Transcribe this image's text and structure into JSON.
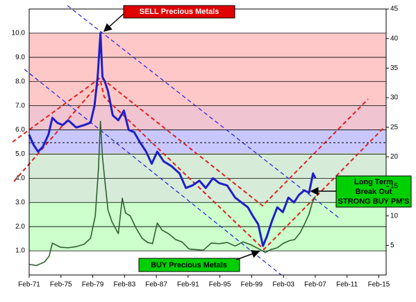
{
  "chart_data": {
    "type": "line",
    "annotations": [
      "SELL Precious Metals",
      "BUY Precious Metals",
      "Long Term",
      "Break Out",
      "STRONG BUY PM'S"
    ],
    "xlim": [
      1971.08,
      2016.0
    ],
    "xticks": [
      {
        "value": 1971.08,
        "label": "Feb-71"
      },
      {
        "value": 1975.08,
        "label": "Feb-75"
      },
      {
        "value": 1979.08,
        "label": "Feb-79"
      },
      {
        "value": 1983.08,
        "label": "Feb-83"
      },
      {
        "value": 1987.08,
        "label": "Feb-87"
      },
      {
        "value": 1991.08,
        "label": "Feb-91"
      },
      {
        "value": 1995.08,
        "label": "Feb-95"
      },
      {
        "value": 1999.08,
        "label": "Feb-99"
      },
      {
        "value": 2003.08,
        "label": "Feb-03"
      },
      {
        "value": 2007.08,
        "label": "Feb-07"
      },
      {
        "value": 2011.08,
        "label": "Feb-11"
      },
      {
        "value": 2015.08,
        "label": "Feb-15"
      }
    ],
    "ylim": [
      0,
      11
    ],
    "yticks": [
      {
        "value": 1,
        "label": "1.0"
      },
      {
        "value": 2,
        "label": "2.0"
      },
      {
        "value": 3,
        "label": "3.0"
      },
      {
        "value": 4,
        "label": "4.0"
      },
      {
        "value": 5,
        "label": "5.0"
      },
      {
        "value": 6,
        "label": "6.0"
      },
      {
        "value": 7,
        "label": "7.0"
      },
      {
        "value": 8,
        "label": "8.0"
      },
      {
        "value": 9,
        "label": "9.0"
      },
      {
        "value": 10,
        "label": "10.0"
      }
    ],
    "y2lim": [
      0,
      45
    ],
    "y2ticks": [
      5,
      10,
      15,
      20,
      25,
      30,
      35,
      40,
      45
    ],
    "grid": true,
    "series": [
      {
        "color": "#1f1fc8",
        "x": [
          1971.08,
          1971.6,
          1972.2,
          1972.8,
          1973.5,
          1974.0,
          1974.6,
          1975.3,
          1976.0,
          1977.0,
          1978.0,
          1978.8,
          1979.3,
          1979.7,
          1980.05,
          1980.3,
          1980.6,
          1981.0,
          1981.6,
          1982.3,
          1983.0,
          1983.6,
          1984.3,
          1985.0,
          1985.8,
          1986.5,
          1987.2,
          1988.0,
          1989.0,
          1990.0,
          1990.8,
          1991.6,
          1992.5,
          1993.3,
          1994.2,
          1995.0,
          1996.0,
          1997.0,
          1997.8,
          1998.6,
          1999.3,
          1999.9,
          2000.5,
          2001.0,
          2001.6,
          2002.3,
          2003.0,
          2003.7,
          2004.4,
          2005.0,
          2005.7,
          2006.3,
          2006.8,
          2007.1
        ],
        "values": [
          5.8,
          5.4,
          5.1,
          5.3,
          5.8,
          6.5,
          6.3,
          6.2,
          6.4,
          6.1,
          6.2,
          6.3,
          7.0,
          8.2,
          10.0,
          8.2,
          8.0,
          7.6,
          6.6,
          6.4,
          6.8,
          6.0,
          5.9,
          5.5,
          5.1,
          4.6,
          5.1,
          4.7,
          4.5,
          4.2,
          3.6,
          3.7,
          3.9,
          3.6,
          4.0,
          3.8,
          3.7,
          3.2,
          3.0,
          2.8,
          2.4,
          2.1,
          1.2,
          1.6,
          2.2,
          2.8,
          2.6,
          3.2,
          3.0,
          3.3,
          3.5,
          3.4,
          4.2,
          4.0
        ]
      },
      {
        "color": "#2f5f2f",
        "axis": "y2",
        "x": [
          1971.08,
          1972.0,
          1973.0,
          1973.6,
          1974.0,
          1975.0,
          1976.0,
          1977.0,
          1978.0,
          1978.8,
          1979.4,
          1979.8,
          1980.05,
          1980.3,
          1980.6,
          1981.0,
          1981.5,
          1982.3,
          1982.8,
          1983.2,
          1983.8,
          1984.5,
          1985.3,
          1986.0,
          1986.6,
          1987.2,
          1987.8,
          1988.6,
          1989.5,
          1990.3,
          1991.2,
          1992.0,
          1993.0,
          1994.0,
          1995.0,
          1996.0,
          1997.0,
          1998.0,
          1999.0,
          2000.0,
          2000.8,
          2001.5,
          2002.3,
          2003.0,
          2003.8,
          2004.5,
          2005.2,
          2005.8,
          2006.3,
          2006.7,
          2007.1
        ],
        "values": [
          1.8,
          1.6,
          2.2,
          3.2,
          5.4,
          4.7,
          4.6,
          4.8,
          5.2,
          6.2,
          10.0,
          18.0,
          26.0,
          20.0,
          16.0,
          11.0,
          9.0,
          7.0,
          13.0,
          10.5,
          10.0,
          8.0,
          6.2,
          5.5,
          5.3,
          8.8,
          7.6,
          7.0,
          6.0,
          5.6,
          4.4,
          4.3,
          4.2,
          5.4,
          5.3,
          5.5,
          4.9,
          5.6,
          5.1,
          4.4,
          3.8,
          4.3,
          4.6,
          5.3,
          5.8,
          6.0,
          7.2,
          8.8,
          10.3,
          12.2,
          13.3
        ]
      }
    ]
  }
}
